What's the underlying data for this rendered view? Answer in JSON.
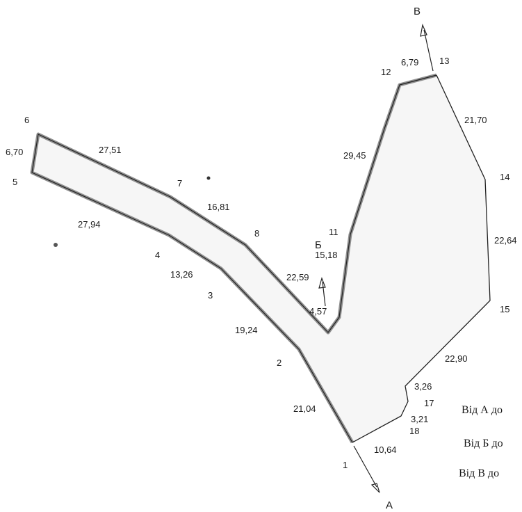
{
  "direction_labels": {
    "a": "А",
    "b": "Б",
    "v": "В"
  },
  "point_labels": [
    "1",
    "2",
    "3",
    "4",
    "5",
    "6",
    "7",
    "8",
    "11",
    "12",
    "13",
    "14",
    "15",
    "17",
    "18"
  ],
  "segment_lengths": [
    "10,64",
    "21,04",
    "19,24",
    "13,26",
    "27,94",
    "6,70",
    "27,51",
    "16,81",
    "22,59",
    "15,18",
    "4,57",
    "29,45",
    "6,79",
    "21,70",
    "22,64",
    "22,90",
    "3,26",
    "3,21"
  ],
  "notes": [
    "Від А до",
    "Від Б до",
    "Від В до"
  ]
}
